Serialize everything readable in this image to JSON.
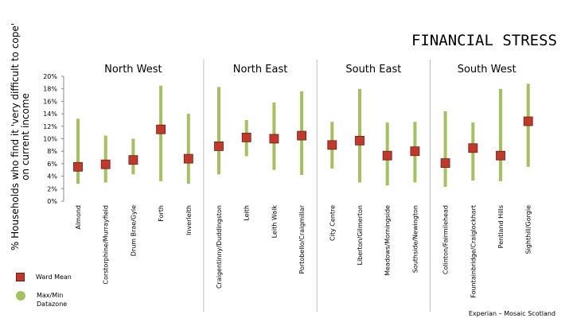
{
  "page": {
    "title": "FINANCIAL STRESS",
    "source": "Experian – Mosaic Scotland"
  },
  "legend": {
    "ward_mean": "Ward Mean",
    "range": "Max/Min Datazone"
  },
  "colors": {
    "marker_fill": "#c0392b",
    "marker_stroke": "#6e1d14",
    "range_bar": "#a3c25e",
    "divider": "#bfbfbf"
  },
  "chart_data": {
    "type": "range-dot",
    "title": "FINANCIAL STRESS",
    "ylabel": "% Households who find it 'very difficult to cope' on current income",
    "ylim": [
      0,
      20
    ],
    "y_ticks": [
      "0%",
      "2%",
      "4%",
      "6%",
      "8%",
      "10%",
      "12%",
      "14%",
      "16%",
      "18%",
      "20%"
    ],
    "grid": false,
    "legend_position": "bottom-left",
    "groups": [
      {
        "name": "North West",
        "categories": [
          "Almond",
          "Corstorphine/Murrayfield",
          "Drum Brae/Gyle",
          "Forth",
          "Inverleith"
        ],
        "mean": [
          5.5,
          5.9,
          6.6,
          11.5,
          6.8
        ],
        "min": [
          2.8,
          3.0,
          4.3,
          3.2,
          2.8
        ],
        "max": [
          13.2,
          10.5,
          10.0,
          18.5,
          14.0
        ]
      },
      {
        "name": "North East",
        "categories": [
          "Craigentinny/Duddingston",
          "Leith",
          "Leith Walk",
          "Portobello/Craigmillar"
        ],
        "mean": [
          8.8,
          10.2,
          10.0,
          10.5
        ],
        "min": [
          4.3,
          7.2,
          5.0,
          4.2
        ],
        "max": [
          18.3,
          13.0,
          15.8,
          17.6
        ]
      },
      {
        "name": "South East",
        "categories": [
          "City Centre",
          "Liberton/Gilmerton",
          "Meadows/Morningside",
          "Southside/Newington"
        ],
        "mean": [
          9.0,
          9.7,
          7.3,
          8.0
        ],
        "min": [
          5.2,
          3.0,
          2.5,
          3.0
        ],
        "max": [
          12.7,
          18.0,
          12.6,
          12.7
        ]
      },
      {
        "name": "South West",
        "categories": [
          "Colinton/Fairmilehead",
          "Fountainbridge/Craiglockhart",
          "Pentland Hills",
          "Sighthill/Gorgie"
        ],
        "mean": [
          6.1,
          8.5,
          7.3,
          12.8
        ],
        "min": [
          2.3,
          3.3,
          3.2,
          5.5
        ],
        "max": [
          14.4,
          12.6,
          18.0,
          18.8
        ]
      }
    ]
  }
}
